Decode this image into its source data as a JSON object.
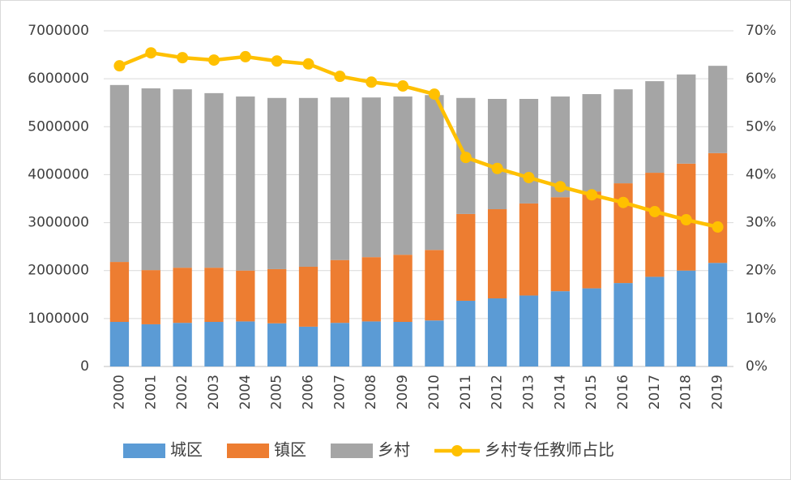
{
  "chart_data": {
    "type": "bar-line",
    "categories": [
      "2000",
      "2001",
      "2002",
      "2003",
      "2004",
      "2005",
      "2006",
      "2007",
      "2008",
      "2009",
      "2010",
      "2011",
      "2012",
      "2013",
      "2014",
      "2015",
      "2016",
      "2017",
      "2018",
      "2019"
    ],
    "series": [
      {
        "name": "城区",
        "type": "bar",
        "color": "#5b9bd5",
        "values": [
          930000,
          880000,
          910000,
          930000,
          940000,
          900000,
          830000,
          910000,
          940000,
          930000,
          960000,
          1370000,
          1420000,
          1480000,
          1570000,
          1630000,
          1740000,
          1870000,
          2000000,
          2160000
        ]
      },
      {
        "name": "镇区",
        "type": "bar",
        "color": "#ed7d31",
        "values": [
          1250000,
          1130000,
          1150000,
          1130000,
          1060000,
          1130000,
          1250000,
          1310000,
          1340000,
          1400000,
          1470000,
          1810000,
          1860000,
          1920000,
          1960000,
          2020000,
          2080000,
          2170000,
          2230000,
          2290000
        ]
      },
      {
        "name": "乡村",
        "type": "bar",
        "color": "#a5a5a5",
        "values": [
          3690000,
          3790000,
          3720000,
          3640000,
          3630000,
          3570000,
          3520000,
          3390000,
          3330000,
          3300000,
          3230000,
          2420000,
          2300000,
          2180000,
          2100000,
          2030000,
          1960000,
          1910000,
          1860000,
          1820000
        ]
      },
      {
        "name": "乡村专任教师占比",
        "type": "line",
        "axis": "y2",
        "color": "#ffc000",
        "values": [
          62.7,
          65.4,
          64.4,
          63.9,
          64.6,
          63.7,
          63.1,
          60.5,
          59.3,
          58.5,
          56.8,
          43.6,
          41.3,
          39.4,
          37.5,
          35.8,
          34.2,
          32.3,
          30.6,
          29.1
        ]
      }
    ],
    "ylim": [
      0,
      7000000
    ],
    "yticks": [
      0,
      1000000,
      2000000,
      3000000,
      4000000,
      5000000,
      6000000,
      7000000
    ],
    "y2lim": [
      0,
      70
    ],
    "y2ticks": [
      {
        "value": 0,
        "label": "0%"
      },
      {
        "value": 10,
        "label": "10%"
      },
      {
        "value": 20,
        "label": "20%"
      },
      {
        "value": 30,
        "label": "30%"
      },
      {
        "value": 40,
        "label": "40%"
      },
      {
        "value": 50,
        "label": "50%"
      },
      {
        "value": 60,
        "label": "60%"
      },
      {
        "value": 70,
        "label": "70%"
      }
    ],
    "grid": true,
    "legend": "bottom"
  }
}
